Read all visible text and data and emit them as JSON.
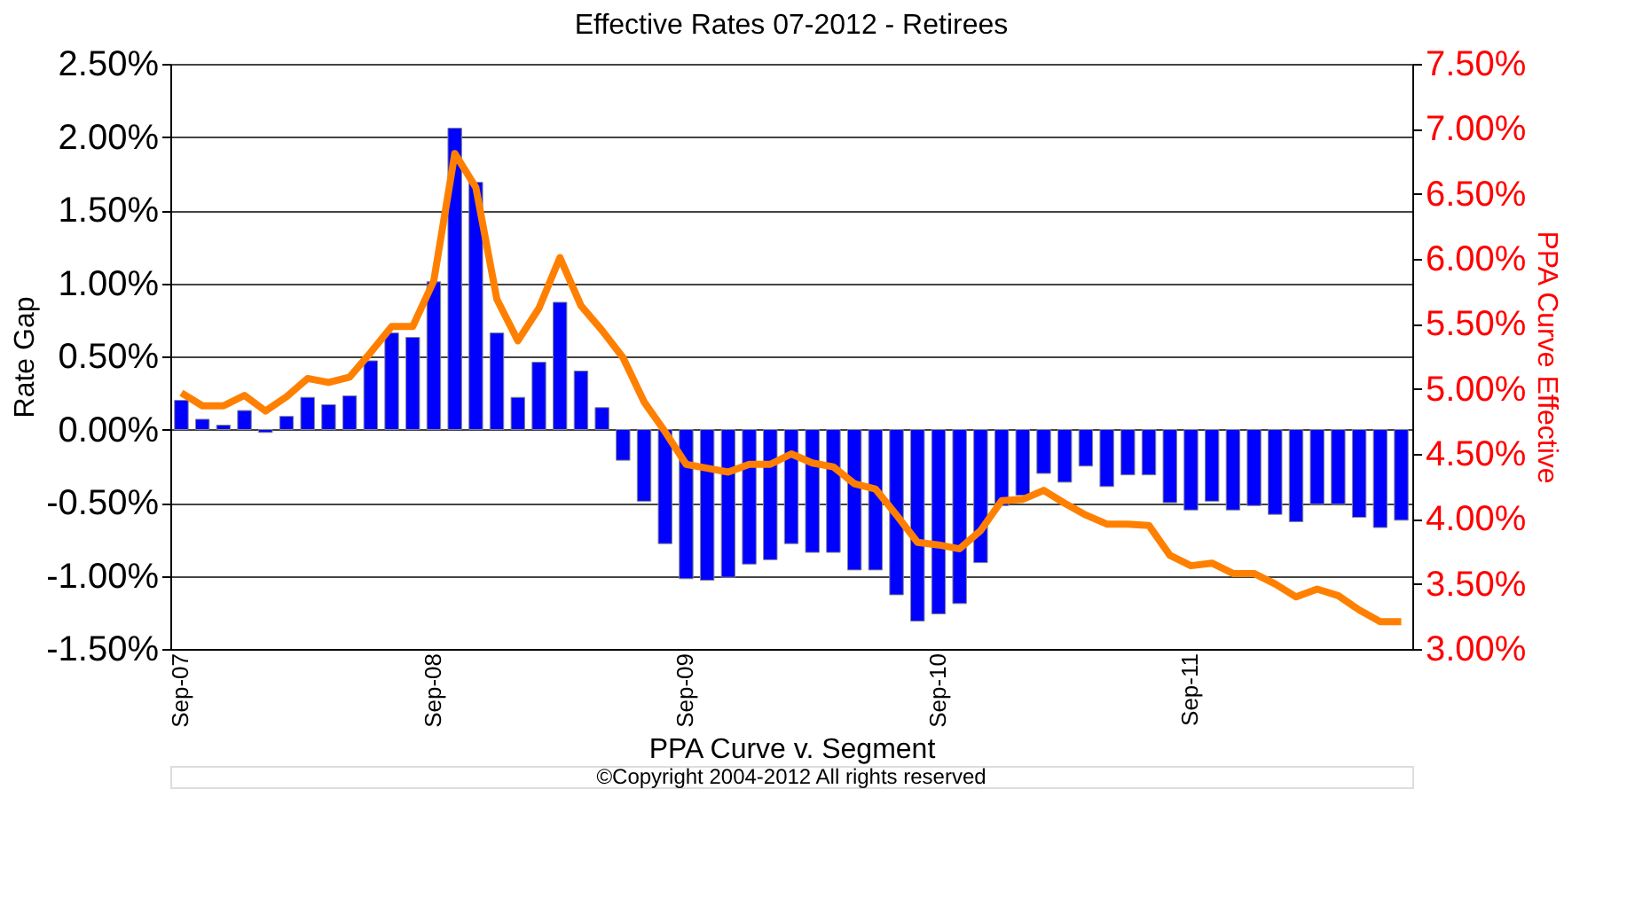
{
  "chart_data": {
    "type": "bar",
    "title": "Effective Rates 07-2012 - Retirees",
    "xlabel": "PPA Curve v. Segment",
    "ylabel": "Rate Gap",
    "y2label": "PPA Curve Effective",
    "annotations": [
      "©Copyright 2004-2012 All rights reserved"
    ],
    "categories": [
      "Sep-07",
      null,
      null,
      null,
      null,
      null,
      null,
      null,
      null,
      null,
      null,
      null,
      "Sep-08",
      null,
      null,
      null,
      null,
      null,
      null,
      null,
      null,
      null,
      null,
      null,
      "Sep-09",
      null,
      null,
      null,
      null,
      null,
      null,
      null,
      null,
      null,
      null,
      null,
      "Sep-10",
      null,
      null,
      null,
      null,
      null,
      null,
      null,
      null,
      null,
      null,
      null,
      "Sep-11",
      null,
      null,
      null,
      null,
      null,
      null,
      null,
      null,
      null,
      null
    ],
    "series": [
      {
        "color": "#0000ff",
        "values": [
          0.2,
          0.07,
          0.03,
          0.13,
          -0.02,
          0.09,
          0.22,
          0.17,
          0.23,
          0.47,
          0.66,
          0.63,
          1.01,
          2.06,
          1.69,
          0.66,
          0.22,
          0.46,
          0.87,
          0.4,
          0.15,
          -0.21,
          -0.49,
          -0.78,
          -1.02,
          -1.03,
          -1.01,
          -0.92,
          -0.89,
          -0.78,
          -0.84,
          -0.84,
          -0.96,
          -0.96,
          -1.13,
          -1.31,
          -1.26,
          -1.19,
          -0.91,
          -0.52,
          -0.45,
          -0.3,
          -0.36,
          -0.25,
          -0.39,
          -0.31,
          -0.31,
          -0.5,
          -0.55,
          -0.49,
          -0.55,
          -0.52,
          -0.58,
          -0.63,
          -0.51,
          -0.51,
          -0.6,
          -0.67,
          -0.62
        ]
      },
      {
        "type": "line",
        "axis": "y2",
        "color": "#ff8000",
        "values": [
          4.97,
          4.87,
          4.87,
          4.95,
          4.83,
          4.94,
          5.08,
          5.05,
          5.09,
          5.28,
          5.48,
          5.48,
          5.83,
          6.81,
          6.55,
          5.69,
          5.37,
          5.62,
          6.01,
          5.64,
          5.45,
          5.24,
          4.9,
          4.67,
          4.42,
          4.39,
          4.36,
          4.42,
          4.42,
          4.5,
          4.43,
          4.4,
          4.27,
          4.23,
          4.03,
          3.82,
          3.8,
          3.77,
          3.91,
          4.14,
          4.15,
          4.22,
          4.12,
          4.03,
          3.96,
          3.96,
          3.95,
          3.72,
          3.64,
          3.66,
          3.58,
          3.58,
          3.5,
          3.4,
          3.46,
          3.41,
          3.3,
          3.21,
          3.21
        ]
      }
    ],
    "ylim": [
      -1.5,
      2.5
    ],
    "yticks": [
      {
        "value": -1.5,
        "label": "-1.50%"
      },
      {
        "value": -1.0,
        "label": "-1.00%"
      },
      {
        "value": -0.5,
        "label": "-0.50%"
      },
      {
        "value": 0,
        "label": "0.00%"
      },
      {
        "value": 0.5,
        "label": "0.50%"
      },
      {
        "value": 1.0,
        "label": "1.00%"
      },
      {
        "value": 1.5,
        "label": "1.50%"
      },
      {
        "value": 2.0,
        "label": "2.00%"
      },
      {
        "value": 2.5,
        "label": "2.50%"
      }
    ],
    "y2lim": [
      3.0,
      7.5
    ],
    "y2ticks": [
      {
        "value": 3.0,
        "label": "3.00%"
      },
      {
        "value": 3.5,
        "label": "3.50%"
      },
      {
        "value": 4.0,
        "label": "4.00%"
      },
      {
        "value": 4.5,
        "label": "4.50%"
      },
      {
        "value": 5.0,
        "label": "5.00%"
      },
      {
        "value": 5.5,
        "label": "5.50%"
      },
      {
        "value": 6.0,
        "label": "6.00%"
      },
      {
        "value": 6.5,
        "label": "6.50%"
      },
      {
        "value": 7.0,
        "label": "7.00%"
      },
      {
        "value": 7.5,
        "label": "7.50%"
      }
    ],
    "grid": "y",
    "line_style": "solid",
    "marker": "none"
  }
}
